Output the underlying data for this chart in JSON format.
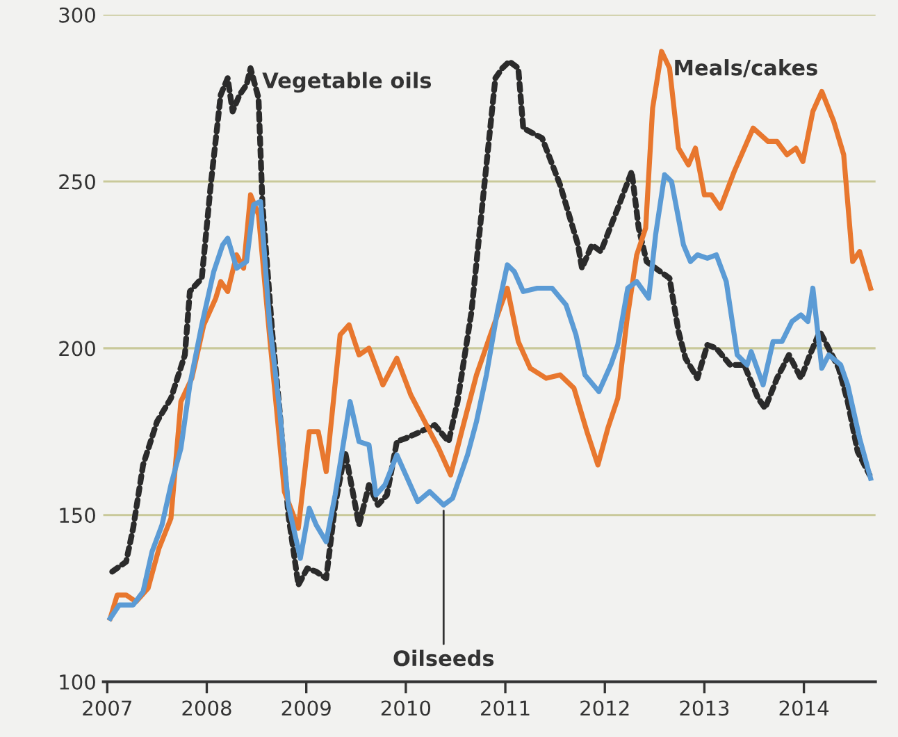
{
  "chart_data": {
    "type": "line",
    "xlim": [
      2006.96,
      2014.72
    ],
    "ylim": [
      100,
      300
    ],
    "xticks": [
      2007,
      2008,
      2009,
      2010,
      2011,
      2012,
      2013,
      2014
    ],
    "yticks": [
      100,
      150,
      200,
      250,
      300
    ],
    "grid": "y",
    "legend": false,
    "marker": "none",
    "series": [
      {
        "name": "Vegetable oils",
        "color": "#2b2b2b",
        "line_style": "dotted",
        "x": [
          2007.05,
          2007.19,
          2007.26,
          2007.36,
          2007.5,
          2007.64,
          2007.78,
          2007.83,
          2007.95,
          2008.04,
          2008.14,
          2008.21,
          2008.26,
          2008.33,
          2008.4,
          2008.44,
          2008.52,
          2008.56,
          2008.66,
          2008.73,
          2008.82,
          2008.92,
          2009.01,
          2009.1,
          2009.2,
          2009.29,
          2009.39,
          2009.53,
          2009.63,
          2009.72,
          2009.81,
          2009.91,
          2010.0,
          2010.15,
          2010.29,
          2010.43,
          2010.52,
          2010.66,
          2010.81,
          2010.9,
          2010.97,
          2011.04,
          2011.13,
          2011.18,
          2011.37,
          2011.55,
          2011.73,
          2011.77,
          2011.87,
          2011.96,
          2012.13,
          2012.27,
          2012.34,
          2012.42,
          2012.51,
          2012.65,
          2012.74,
          2012.81,
          2012.93,
          2013.03,
          2013.12,
          2013.26,
          2013.4,
          2013.54,
          2013.61,
          2013.73,
          2013.85,
          2013.97,
          2014.06,
          2014.16,
          2014.23,
          2014.35,
          2014.44,
          2014.54,
          2014.66
        ],
        "values": [
          133,
          136,
          146,
          165,
          178,
          185,
          198,
          217,
          221,
          249,
          276,
          281,
          271,
          276,
          279,
          284,
          275,
          243,
          204,
          182,
          150,
          129,
          134,
          133,
          131,
          153,
          169,
          147,
          159,
          153,
          156,
          172,
          173,
          175,
          177,
          172,
          184,
          211,
          255,
          281,
          284,
          286,
          284,
          266,
          263,
          249,
          231,
          224,
          231,
          229,
          242,
          253,
          236,
          226,
          224,
          221,
          205,
          197,
          191,
          201,
          200,
          195,
          195,
          185,
          182,
          191,
          198,
          191,
          198,
          205,
          201,
          194,
          184,
          169,
          162
        ]
      },
      {
        "name": "Meals/cakes",
        "color": "#e8772e",
        "line_style": "solid",
        "x": [
          2007.03,
          2007.1,
          2007.19,
          2007.29,
          2007.41,
          2007.52,
          2007.64,
          2007.74,
          2007.85,
          2007.97,
          2008.09,
          2008.14,
          2008.21,
          2008.3,
          2008.37,
          2008.44,
          2008.52,
          2008.63,
          2008.78,
          2008.92,
          2009.03,
          2009.12,
          2009.2,
          2009.34,
          2009.43,
          2009.53,
          2009.63,
          2009.77,
          2009.91,
          2010.05,
          2010.19,
          2010.33,
          2010.45,
          2010.57,
          2010.71,
          2010.85,
          2010.97,
          2011.02,
          2011.13,
          2011.25,
          2011.41,
          2011.55,
          2011.69,
          2011.82,
          2011.93,
          2012.03,
          2012.13,
          2012.22,
          2012.32,
          2012.41,
          2012.48,
          2012.57,
          2012.65,
          2012.74,
          2012.84,
          2012.91,
          2013.0,
          2013.07,
          2013.16,
          2013.3,
          2013.49,
          2013.64,
          2013.73,
          2013.83,
          2013.92,
          2013.99,
          2014.09,
          2014.18,
          2014.3,
          2014.4,
          2014.49,
          2014.56,
          2014.67
        ],
        "values": [
          119,
          126,
          126,
          124,
          128,
          140,
          149,
          184,
          191,
          207,
          215,
          220,
          217,
          228,
          224,
          246,
          240,
          204,
          157,
          146,
          175,
          175,
          163,
          204,
          207,
          198,
          200,
          189,
          197,
          186,
          178,
          170,
          162,
          176,
          192,
          204,
          214,
          218,
          202,
          194,
          191,
          192,
          188,
          175,
          165,
          176,
          185,
          208,
          228,
          236,
          272,
          289,
          284,
          260,
          255,
          260,
          246,
          246,
          242,
          253,
          266,
          262,
          262,
          258,
          260,
          256,
          271,
          277,
          268,
          258,
          226,
          229,
          218
        ]
      },
      {
        "name": "Oilseeds",
        "color": "#5b9bd5",
        "line_style": "solid",
        "x": [
          2007.03,
          2007.12,
          2007.26,
          2007.36,
          2007.45,
          2007.55,
          2007.64,
          2007.74,
          2007.83,
          2007.95,
          2008.07,
          2008.16,
          2008.21,
          2008.3,
          2008.4,
          2008.47,
          2008.54,
          2008.63,
          2008.73,
          2008.82,
          2008.94,
          2009.03,
          2009.1,
          2009.2,
          2009.29,
          2009.44,
          2009.53,
          2009.63,
          2009.7,
          2009.79,
          2009.91,
          2010.0,
          2010.12,
          2010.24,
          2010.38,
          2010.47,
          2010.62,
          2010.71,
          2010.81,
          2010.92,
          2011.02,
          2011.09,
          2011.18,
          2011.32,
          2011.47,
          2011.61,
          2011.71,
          2011.8,
          2011.94,
          2012.06,
          2012.13,
          2012.23,
          2012.32,
          2012.44,
          2012.51,
          2012.6,
          2012.67,
          2012.79,
          2012.86,
          2012.93,
          2013.03,
          2013.12,
          2013.22,
          2013.33,
          2013.43,
          2013.47,
          2013.59,
          2013.69,
          2013.78,
          2013.88,
          2013.97,
          2014.04,
          2014.09,
          2014.18,
          2014.25,
          2014.37,
          2014.44,
          2014.56,
          2014.67
        ],
        "values": [
          119,
          123,
          123,
          127,
          139,
          147,
          159,
          170,
          189,
          207,
          223,
          231,
          233,
          224,
          226,
          243,
          244,
          208,
          182,
          153,
          137,
          152,
          147,
          142,
          156,
          184,
          172,
          171,
          156,
          159,
          168,
          162,
          154,
          157,
          153,
          155,
          168,
          178,
          192,
          211,
          225,
          223,
          217,
          218,
          218,
          213,
          204,
          192,
          187,
          195,
          201,
          218,
          220,
          215,
          234,
          252,
          250,
          231,
          226,
          228,
          227,
          228,
          220,
          198,
          195,
          199,
          189,
          202,
          202,
          208,
          210,
          208,
          218,
          194,
          198,
          195,
          189,
          173,
          161
        ]
      }
    ]
  }
}
